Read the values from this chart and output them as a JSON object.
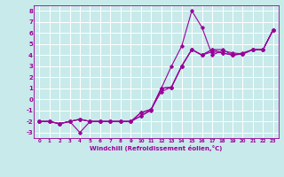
{
  "title": "",
  "xlabel": "Windchill (Refroidissement éolien,°C)",
  "ylabel": "",
  "bg_color": "#c8eaea",
  "line_color": "#990099",
  "grid_color": "#ffffff",
  "xlim": [
    -0.5,
    23.5
  ],
  "ylim": [
    -3.5,
    8.5
  ],
  "yticks": [
    -3,
    -2,
    -1,
    0,
    1,
    2,
    3,
    4,
    5,
    6,
    7,
    8
  ],
  "xticks": [
    0,
    1,
    2,
    3,
    4,
    5,
    6,
    7,
    8,
    9,
    10,
    11,
    12,
    13,
    14,
    15,
    16,
    17,
    18,
    19,
    20,
    21,
    22,
    23
  ],
  "series": [
    [
      -2.0,
      -2.0,
      -2.2,
      -2.0,
      -3.0,
      -2.0,
      -2.0,
      -2.0,
      -2.0,
      -2.0,
      -1.5,
      -1.0,
      1.0,
      3.0,
      4.8,
      8.0,
      6.5,
      4.0,
      4.4,
      4.2,
      4.1,
      4.5,
      4.5,
      6.3
    ],
    [
      -2.0,
      -2.0,
      -2.2,
      -2.0,
      -1.8,
      -2.0,
      -2.0,
      -2.0,
      -2.0,
      -2.0,
      -1.5,
      -0.9,
      1.0,
      1.1,
      3.0,
      4.5,
      4.0,
      4.3,
      4.2,
      4.0,
      4.1,
      4.5,
      4.5,
      6.3
    ],
    [
      -2.0,
      -2.0,
      -2.2,
      -2.0,
      -1.8,
      -2.0,
      -2.0,
      -2.0,
      -2.0,
      -2.0,
      -1.2,
      -0.9,
      1.0,
      1.1,
      3.0,
      4.5,
      4.0,
      4.5,
      4.2,
      4.0,
      4.1,
      4.5,
      4.5,
      6.3
    ],
    [
      -2.0,
      -2.0,
      -2.2,
      -2.0,
      -1.8,
      -2.0,
      -2.0,
      -2.0,
      -2.0,
      -2.0,
      -1.2,
      -0.9,
      0.7,
      1.1,
      3.0,
      4.5,
      4.0,
      4.5,
      4.5,
      4.0,
      4.2,
      4.5,
      4.5,
      6.3
    ]
  ],
  "xlabel_fontsize": 5.0,
  "tick_fontsize_x": 4.0,
  "tick_fontsize_y": 5.0
}
